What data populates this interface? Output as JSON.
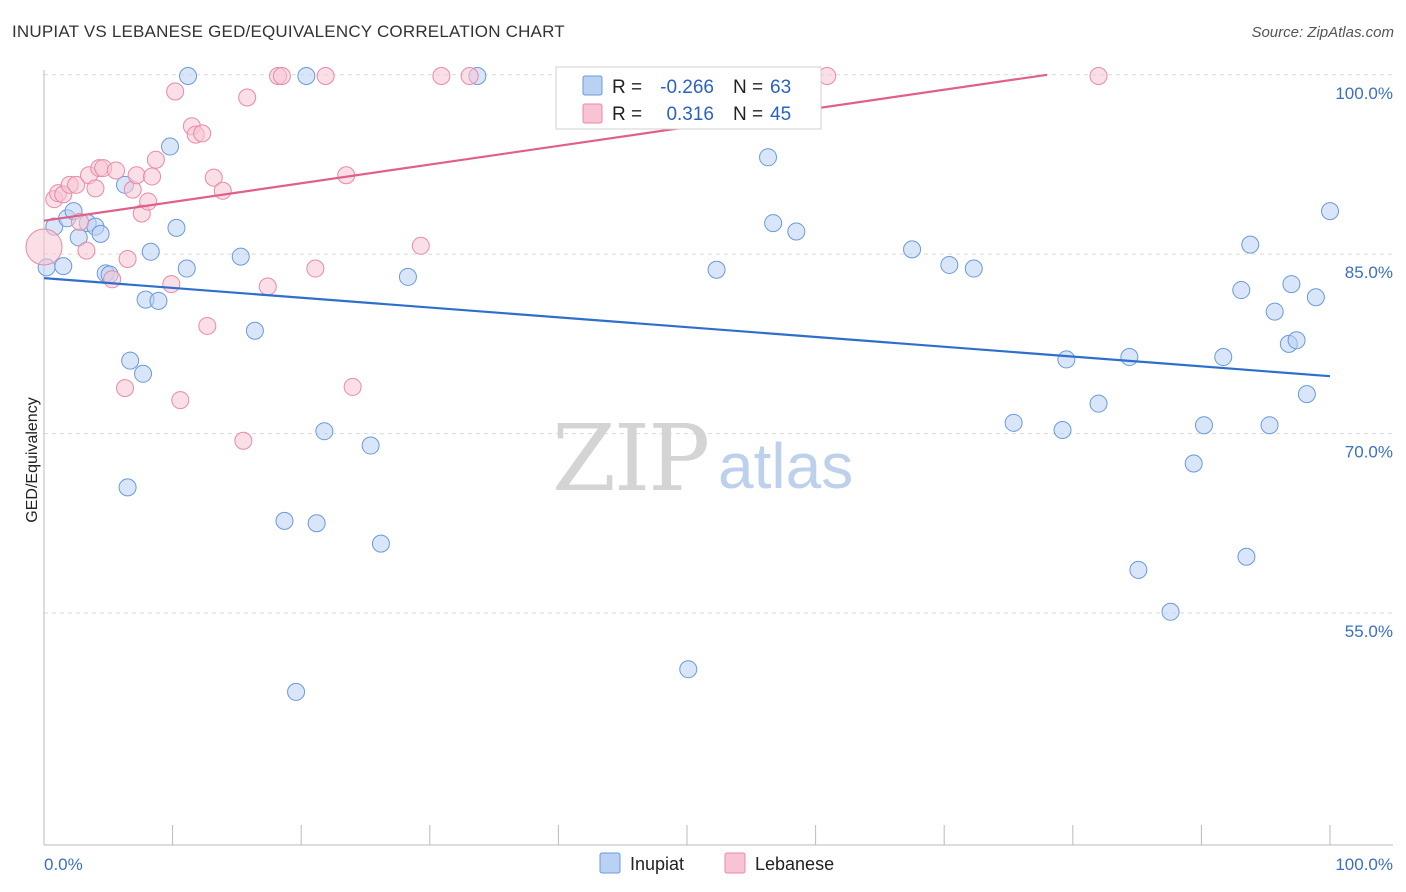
{
  "header": {
    "title": "INUPIAT VS LEBANESE GED/EQUIVALENCY CORRELATION CHART",
    "source": "Source: ZipAtlas.com"
  },
  "watermark": {
    "zip": "ZIP",
    "atlas": "atlas"
  },
  "colors": {
    "inupiat_fill": "#b9d2f4",
    "inupiat_stroke": "#6b9ad8",
    "inupiat_line": "#2f6fcc",
    "lebanese_fill": "#f8c4d4",
    "lebanese_stroke": "#e88aa8",
    "lebanese_line": "#e0608a",
    "grid": "#d9d9d9",
    "axis_text": "#3b6fc4"
  },
  "legend": {
    "r_label": "R =",
    "n_label": "N =",
    "rows": [
      {
        "series": "Inupiat",
        "r": "-0.266",
        "n": "63"
      },
      {
        "series": "Lebanese",
        "r": "0.316",
        "n": "45"
      }
    ]
  },
  "chart_data": {
    "type": "scatter",
    "title": "INUPIAT VS LEBANESE GED/EQUIVALENCY CORRELATION CHART",
    "xlabel": "",
    "ylabel": "GED/Equivalency",
    "xlim": [
      0,
      100
    ],
    "ylim": [
      35.6,
      100.4
    ],
    "x_tick_labels": [
      "0.0%",
      "100.0%"
    ],
    "y_ticks": [
      100,
      85,
      70,
      55
    ],
    "y_tick_labels": [
      "100.0%",
      "85.0%",
      "70.0%",
      "55.0%"
    ],
    "grid": true,
    "legend_position": "bottom",
    "series": [
      {
        "name": "Inupiat",
        "trend": {
          "x": [
            0,
            100
          ],
          "y": [
            83.0,
            74.8
          ]
        },
        "points": [
          [
            0.2,
            83.9
          ],
          [
            0.8,
            87.3
          ],
          [
            1.5,
            84.0
          ],
          [
            1.8,
            88.0
          ],
          [
            2.3,
            88.6
          ],
          [
            2.7,
            86.4
          ],
          [
            3.4,
            87.6
          ],
          [
            4.0,
            87.3
          ],
          [
            4.4,
            86.7
          ],
          [
            4.8,
            83.4
          ],
          [
            5.1,
            83.3
          ],
          [
            6.3,
            90.8
          ],
          [
            6.5,
            65.5
          ],
          [
            6.7,
            76.1
          ],
          [
            7.7,
            75.0
          ],
          [
            7.9,
            81.2
          ],
          [
            8.3,
            85.2
          ],
          [
            8.9,
            81.1
          ],
          [
            9.8,
            94.0
          ],
          [
            10.3,
            87.2
          ],
          [
            11.1,
            83.8
          ],
          [
            11.2,
            99.9
          ],
          [
            15.3,
            84.8
          ],
          [
            16.4,
            78.6
          ],
          [
            18.7,
            62.7
          ],
          [
            19.6,
            48.4
          ],
          [
            20.4,
            99.9
          ],
          [
            21.2,
            62.5
          ],
          [
            21.8,
            70.2
          ],
          [
            25.4,
            69.0
          ],
          [
            26.2,
            60.8
          ],
          [
            28.3,
            83.1
          ],
          [
            33.7,
            99.9
          ],
          [
            46.8,
            99.9
          ],
          [
            50.1,
            50.3
          ],
          [
            52.3,
            83.7
          ],
          [
            56.3,
            93.1
          ],
          [
            56.7,
            87.6
          ],
          [
            58.5,
            86.9
          ],
          [
            67.5,
            85.4
          ],
          [
            70.4,
            84.1
          ],
          [
            72.3,
            83.8
          ],
          [
            75.4,
            70.9
          ],
          [
            79.2,
            70.3
          ],
          [
            79.5,
            76.2
          ],
          [
            82.0,
            72.5
          ],
          [
            84.4,
            76.4
          ],
          [
            85.1,
            58.6
          ],
          [
            87.6,
            55.1
          ],
          [
            89.4,
            67.5
          ],
          [
            90.2,
            70.7
          ],
          [
            91.7,
            76.4
          ],
          [
            93.1,
            82.0
          ],
          [
            93.5,
            59.7
          ],
          [
            93.8,
            85.8
          ],
          [
            95.3,
            70.7
          ],
          [
            95.7,
            80.2
          ],
          [
            96.8,
            77.5
          ],
          [
            97.0,
            82.5
          ],
          [
            97.4,
            77.8
          ],
          [
            98.2,
            73.3
          ],
          [
            98.9,
            81.4
          ],
          [
            100.0,
            88.6
          ]
        ]
      },
      {
        "name": "Lebanese",
        "trend": {
          "x": [
            0,
            78
          ],
          "y": [
            87.8,
            100.0
          ]
        },
        "points": [
          [
            0.0,
            85.6
          ],
          [
            0.8,
            89.6
          ],
          [
            1.1,
            90.1
          ],
          [
            1.5,
            90.0
          ],
          [
            2.0,
            90.8
          ],
          [
            2.5,
            90.8
          ],
          [
            2.8,
            87.7
          ],
          [
            3.3,
            85.3
          ],
          [
            3.5,
            91.6
          ],
          [
            4.0,
            90.5
          ],
          [
            4.3,
            92.2
          ],
          [
            4.6,
            92.2
          ],
          [
            5.3,
            82.9
          ],
          [
            5.6,
            92.0
          ],
          [
            6.3,
            73.8
          ],
          [
            6.5,
            84.6
          ],
          [
            6.9,
            90.4
          ],
          [
            7.2,
            91.6
          ],
          [
            7.6,
            88.4
          ],
          [
            8.1,
            89.4
          ],
          [
            8.4,
            91.5
          ],
          [
            8.7,
            92.9
          ],
          [
            9.9,
            82.5
          ],
          [
            10.2,
            98.6
          ],
          [
            10.6,
            72.8
          ],
          [
            11.5,
            95.7
          ],
          [
            11.8,
            95.0
          ],
          [
            12.3,
            95.1
          ],
          [
            12.7,
            79.0
          ],
          [
            13.2,
            91.4
          ],
          [
            13.9,
            90.3
          ],
          [
            15.5,
            69.4
          ],
          [
            15.8,
            98.1
          ],
          [
            17.4,
            82.3
          ],
          [
            18.2,
            99.9
          ],
          [
            18.5,
            99.9
          ],
          [
            21.1,
            83.8
          ],
          [
            21.9,
            99.9
          ],
          [
            23.5,
            91.6
          ],
          [
            24.0,
            73.9
          ],
          [
            29.3,
            85.7
          ],
          [
            30.9,
            99.9
          ],
          [
            33.1,
            99.9
          ],
          [
            60.9,
            99.9
          ],
          [
            82.0,
            99.9
          ]
        ]
      }
    ]
  },
  "bottom_legend": [
    "Inupiat",
    "Lebanese"
  ]
}
